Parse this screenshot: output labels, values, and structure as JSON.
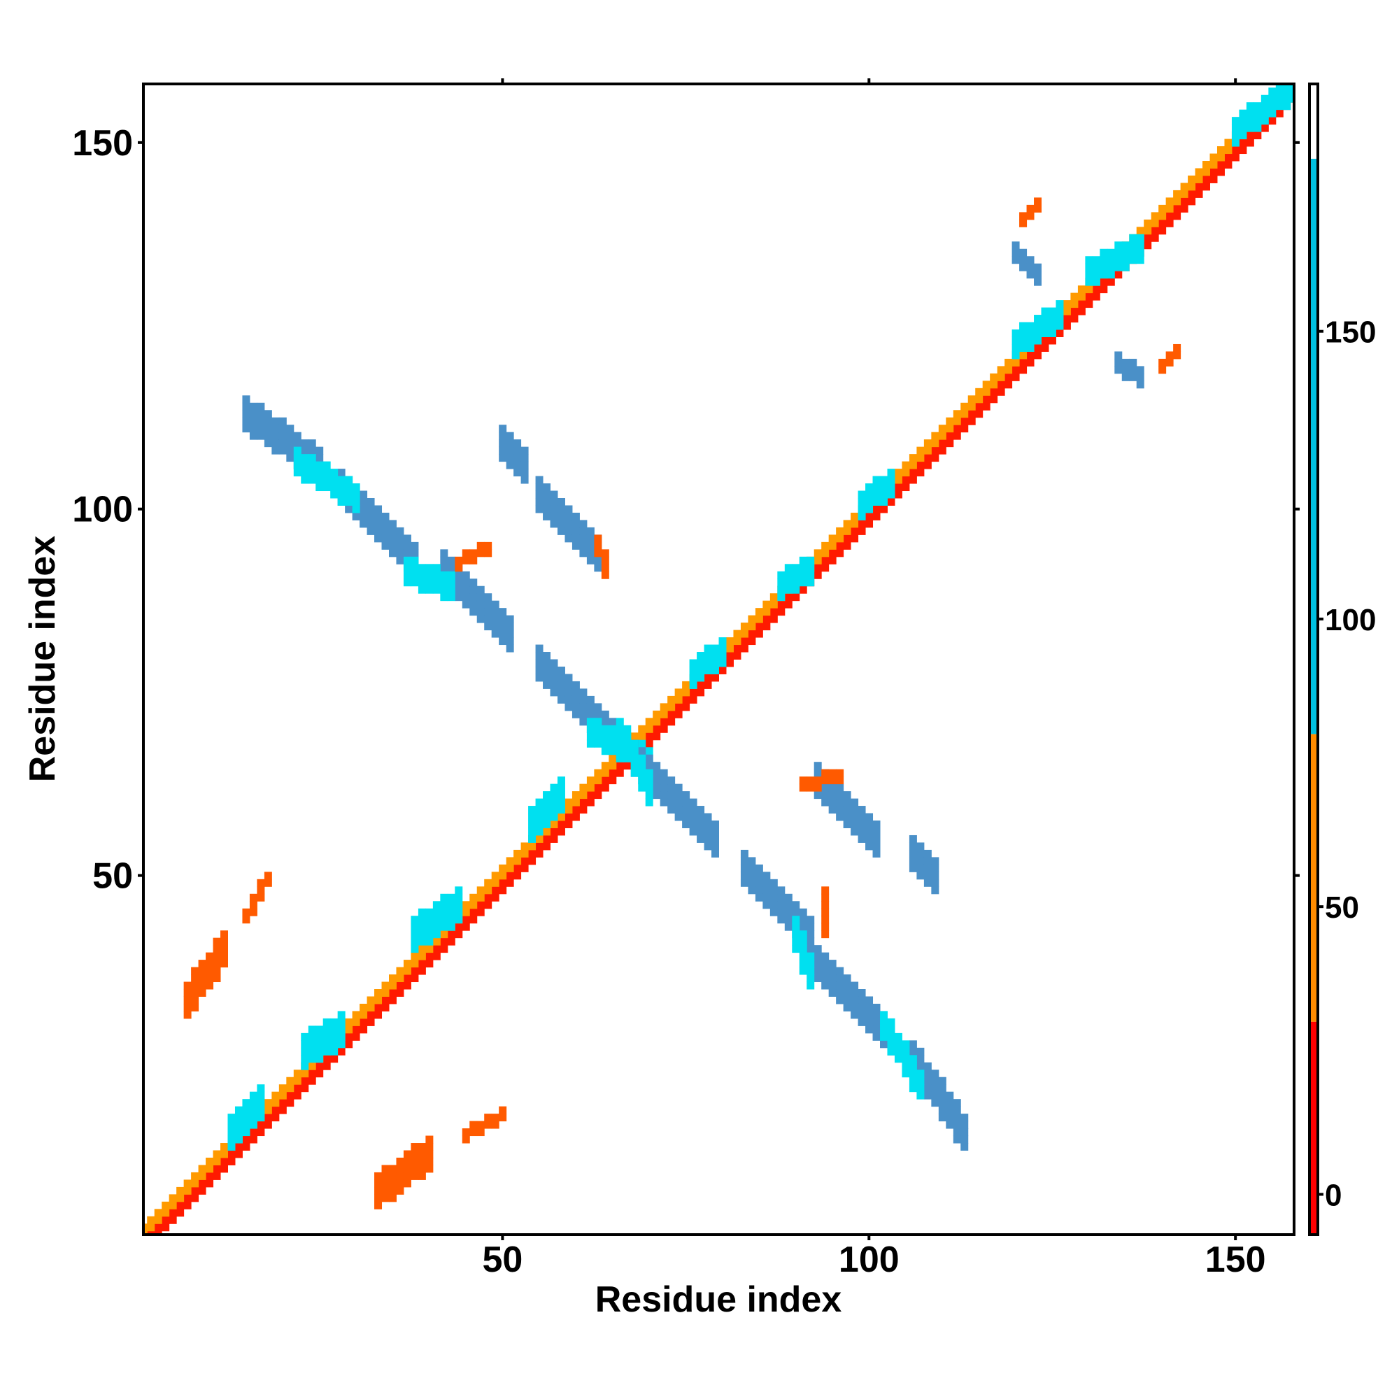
{
  "chart_data": {
    "type": "heatmap",
    "title": "",
    "xlabel": "Residue index",
    "ylabel": "Residue index",
    "xlim": [
      1,
      158
    ],
    "ylim": [
      1,
      158
    ],
    "x_ticks": [
      50,
      100,
      150
    ],
    "y_ticks": [
      50,
      100,
      150
    ],
    "grid": false,
    "colorbar": {
      "ticks": [
        0,
        50,
        100,
        150
      ],
      "range": [
        -7,
        193
      ],
      "bands": [
        {
          "from": -7,
          "to": 30,
          "color": "#ff0000"
        },
        {
          "from": 30,
          "to": 80,
          "color": "#ff8c00"
        },
        {
          "from": 80,
          "to": 180,
          "color": "#00c0e0"
        },
        {
          "from": 180,
          "to": 193,
          "color": "#ffffff"
        }
      ]
    },
    "colors": {
      "red": "#ff1a00",
      "orange_red": "#ff5a00",
      "orange": "#ff9a00",
      "cyan": "#00e0f0",
      "blue": "#4a90c8"
    },
    "contact_regions": [
      {
        "name": "diagonal-red",
        "color": "red",
        "segments": [
          [
            2,
            1,
            158,
            157
          ]
        ],
        "width": 2
      },
      {
        "name": "diagonal-orange",
        "color": "orange",
        "segments": [
          [
            1,
            2,
            157,
            158
          ]
        ],
        "width": 2
      },
      {
        "name": "helix1-cyan",
        "color": "cyan",
        "segments": [
          [
            23,
            26,
            28,
            29
          ],
          [
            13,
            15,
            17,
            19
          ]
        ],
        "width": 5
      },
      {
        "name": "helix2-cyan",
        "color": "cyan",
        "segments": [
          [
            38,
            42,
            44,
            46
          ],
          [
            54,
            57,
            58,
            61
          ]
        ],
        "width": 5
      },
      {
        "name": "helix3-cyan",
        "color": "cyan",
        "segments": [
          [
            88,
            90,
            92,
            92
          ],
          [
            99,
            101,
            103,
            104
          ],
          [
            76,
            78,
            80,
            81
          ]
        ],
        "width": 4
      },
      {
        "name": "helix4-cyan",
        "color": "cyan",
        "segments": [
          [
            130,
            133,
            137,
            136
          ],
          [
            120,
            123,
            126,
            127
          ],
          [
            150,
            152,
            158,
            158
          ]
        ],
        "width": 4
      },
      {
        "name": "antiparallel-upper-blue",
        "color": "blue",
        "segments": [
          [
            15,
            113,
            25,
            106
          ],
          [
            28,
            103,
            38,
            93
          ],
          [
            42,
            92,
            51,
            83
          ],
          [
            55,
            79,
            66,
            68
          ]
        ],
        "width": 5
      },
      {
        "name": "antiparallel-upper-cyan",
        "color": "cyan",
        "segments": [
          [
            22,
            107,
            30,
            102
          ],
          [
            37,
            92,
            43,
            90
          ],
          [
            62,
            70,
            70,
            66
          ]
        ],
        "width": 4
      },
      {
        "name": "antiparallel-lower-blue",
        "color": "blue",
        "segments": [
          [
            113,
            15,
            106,
            25
          ],
          [
            103,
            28,
            93,
            38
          ],
          [
            92,
            42,
            83,
            51
          ],
          [
            79,
            55,
            68,
            66
          ]
        ],
        "width": 5
      },
      {
        "name": "antiparallel-lower-cyan",
        "color": "cyan",
        "segments": [
          [
            107,
            22,
            102,
            30
          ],
          [
            92,
            37,
            90,
            43
          ],
          [
            70,
            62,
            66,
            70
          ]
        ],
        "width": 4
      },
      {
        "name": "hairpin-upper-blue",
        "color": "blue",
        "segments": [
          [
            55,
            102,
            63,
            94
          ],
          [
            50,
            109,
            53,
            106
          ]
        ],
        "width": 5
      },
      {
        "name": "hairpin-lower-blue",
        "color": "blue",
        "segments": [
          [
            93,
            63,
            101,
            55
          ],
          [
            106,
            53,
            109,
            50
          ]
        ],
        "width": 5
      },
      {
        "name": "hairpin-upper-orange",
        "color": "orange_red",
        "segments": [
          [
            63,
            96,
            64,
            92
          ],
          [
            44,
            93,
            48,
            95
          ]
        ],
        "width": 2
      },
      {
        "name": "hairpin-lower-orange",
        "color": "orange_red",
        "segments": [
          [
            91,
            63,
            96,
            64
          ],
          [
            94,
            43,
            94,
            48
          ]
        ],
        "width": 2
      },
      {
        "name": "c-term-blue",
        "color": "blue",
        "segments": [
          [
            120,
            135,
            123,
            132
          ],
          [
            134,
            120,
            137,
            118
          ]
        ],
        "width": 3
      },
      {
        "name": "c-term-orange",
        "color": "orange_red",
        "segments": [
          [
            121,
            140,
            123,
            142
          ],
          [
            140,
            120,
            142,
            122
          ]
        ],
        "width": 2
      },
      {
        "name": "n-term-red-blob-upper",
        "color": "orange_red",
        "segments": [
          [
            7,
            33,
            12,
            40
          ]
        ],
        "width": 5
      },
      {
        "name": "n-term-red-blob-lower",
        "color": "orange_red",
        "segments": [
          [
            33,
            7,
            40,
            12
          ]
        ],
        "width": 5
      },
      {
        "name": "n-term-orange-upper",
        "color": "orange_red",
        "segments": [
          [
            15,
            45,
            18,
            50
          ]
        ],
        "width": 2
      },
      {
        "name": "n-term-orange-lower",
        "color": "orange_red",
        "segments": [
          [
            45,
            15,
            50,
            18
          ]
        ],
        "width": 2
      }
    ]
  }
}
